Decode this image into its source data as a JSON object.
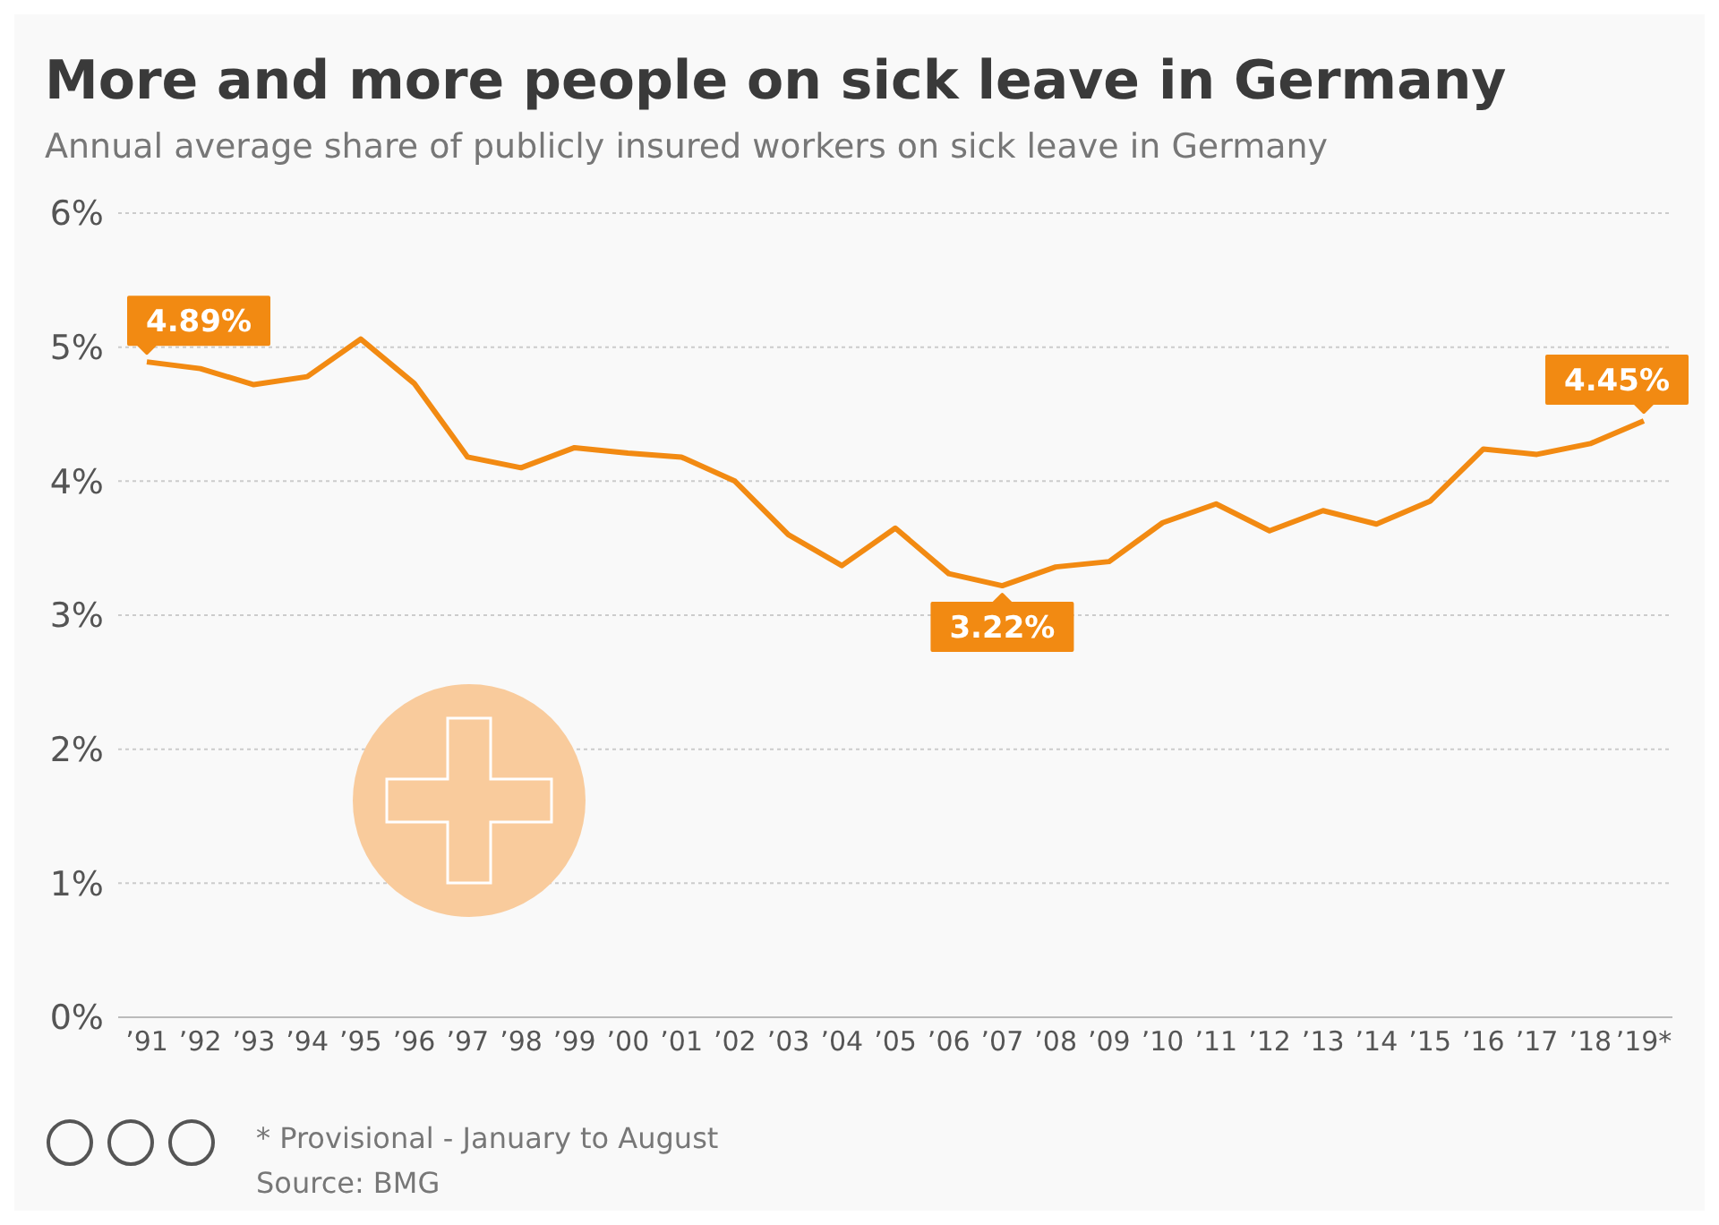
{
  "chart_data": {
    "type": "line",
    "title": "More and more people on sick leave in Germany",
    "subtitle": "Annual average share of publicly insured workers on sick leave in Germany",
    "categories": [
      "’91",
      "’92",
      "’93",
      "’94",
      "’95",
      "’96",
      "’97",
      "’98",
      "’99",
      "’00",
      "’01",
      "’02",
      "’03",
      "’04",
      "’05",
      "’06",
      "’07",
      "’08",
      "’09",
      "’10",
      "’11",
      "’12",
      "’13",
      "’14",
      "’15",
      "’16",
      "’17",
      "’18",
      "’19*"
    ],
    "series": [
      {
        "color": "#f28a12",
        "values": [
          4.89,
          4.84,
          4.72,
          4.78,
          5.06,
          4.73,
          4.18,
          4.1,
          4.25,
          4.21,
          4.18,
          4.0,
          3.6,
          3.37,
          3.65,
          3.31,
          3.22,
          3.36,
          3.4,
          3.69,
          3.83,
          3.63,
          3.78,
          3.68,
          3.85,
          4.24,
          4.2,
          4.28,
          4.45
        ],
        "value_labels": [
          "4.89%",
          null,
          null,
          null,
          null,
          null,
          null,
          null,
          null,
          null,
          null,
          null,
          null,
          null,
          null,
          null,
          "3.22%",
          null,
          null,
          null,
          null,
          null,
          null,
          null,
          null,
          null,
          null,
          null,
          "4.45%"
        ]
      }
    ],
    "ylim": [
      0,
      6
    ],
    "yticks": [
      {
        "value": 0,
        "label": "0%"
      },
      {
        "value": 1,
        "label": "1%"
      },
      {
        "value": 2,
        "label": "2%"
      },
      {
        "value": 3,
        "label": "3%"
      },
      {
        "value": 4,
        "label": "4%"
      },
      {
        "value": 5,
        "label": "5%"
      },
      {
        "value": 6,
        "label": "6%"
      }
    ],
    "grid": "y",
    "marker": "none",
    "line_style": "solid",
    "annotations": [
      "* Provisional - January to August",
      "Source: BMG"
    ]
  }
}
